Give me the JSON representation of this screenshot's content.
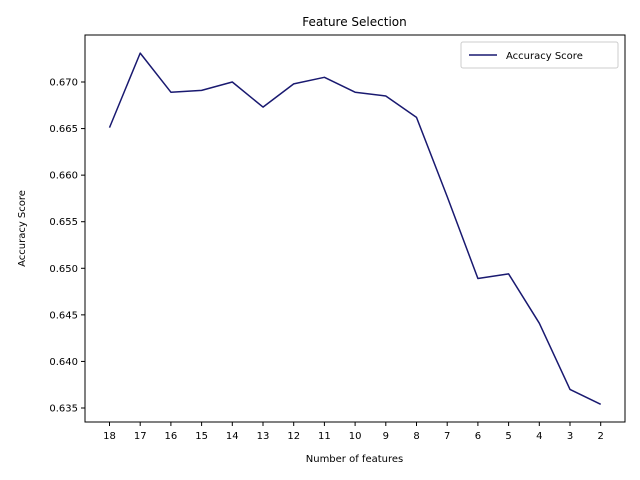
{
  "chart_data": {
    "type": "line",
    "title": "Feature Selection",
    "xlabel": "Number of features",
    "ylabel": "Accuracy Score",
    "categories": [
      "18",
      "17",
      "16",
      "15",
      "14",
      "13",
      "12",
      "11",
      "10",
      "9",
      "8",
      "7",
      "6",
      "5",
      "4",
      "3",
      "2"
    ],
    "series": [
      {
        "name": "Accuracy Score",
        "color": "#191970",
        "values": [
          0.6651,
          0.6731,
          0.6689,
          0.6691,
          0.67,
          0.6673,
          0.6698,
          0.6705,
          0.6689,
          0.6685,
          0.6662,
          0.6577,
          0.6489,
          0.6494,
          0.6441,
          0.637,
          0.6354
        ]
      }
    ],
    "yticks": [
      0.635,
      0.64,
      0.645,
      0.65,
      0.655,
      0.66,
      0.665,
      0.67
    ],
    "ylim": [
      0.6335,
      0.7175
    ],
    "grid": false,
    "legend_position": "top-right"
  }
}
